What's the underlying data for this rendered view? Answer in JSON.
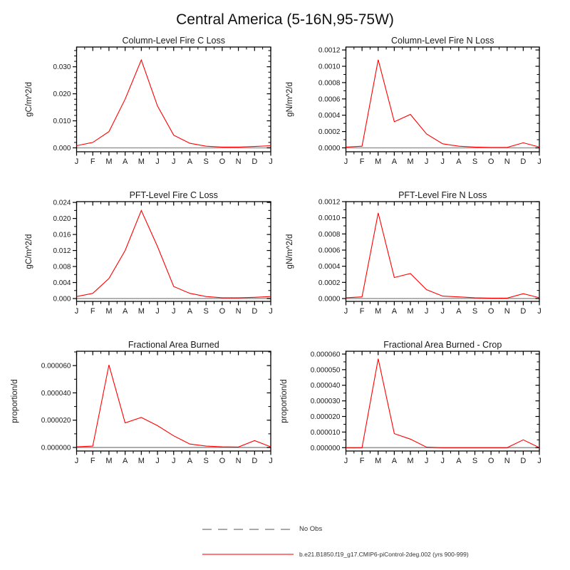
{
  "title": "Central America (5-16N,95-75W)",
  "colors": {
    "series_line": "#ff0000",
    "legend_series_line": "#ff7a7a",
    "no_obs_line": "#a9a9a9",
    "zero_line": "#999999",
    "frame": "#000000"
  },
  "legend": {
    "no_obs_label": "No Obs",
    "series_label": "b.e21.B1850.f19_g17.CMIP6-piControl-2deg.002 (yrs 900-999)"
  },
  "categories": [
    "J",
    "F",
    "M",
    "A",
    "M",
    "J",
    "J",
    "A",
    "S",
    "O",
    "N",
    "D",
    "J"
  ],
  "chart_data": [
    {
      "type": "line",
      "title": "Column-Level Fire C Loss",
      "ylabel": "gC/m^2/d",
      "series_name": "b.e21.B1850.f19_g17.CMIP6-piControl-2deg.002 (yrs 900-999)",
      "values": [
        0.0008,
        0.002,
        0.006,
        0.018,
        0.0325,
        0.0155,
        0.0047,
        0.0017,
        0.0006,
        0.0003,
        0.0003,
        0.0005,
        0.0008
      ],
      "yticks": [
        0.0,
        0.01,
        0.02,
        0.03
      ],
      "ytick_labels": [
        "0.000",
        "0.010",
        "0.020",
        "0.030"
      ],
      "minor_step": 0.002,
      "ylim": [
        -0.00145,
        0.0373
      ],
      "grid": false,
      "line_color": "#ff0000"
    },
    {
      "type": "line",
      "title": "Column-Level Fire N Loss",
      "ylabel": "gN/m^2/d",
      "series_name": "b.e21.B1850.f19_g17.CMIP6-piControl-2deg.002 (yrs 900-999)",
      "values": [
        1e-05,
        2e-05,
        0.00108,
        0.00032,
        0.00041,
        0.00017,
        5e-05,
        2e-05,
        1e-05,
        5e-06,
        5e-06,
        6.2e-05,
        1e-05
      ],
      "yticks": [
        0.0,
        0.0002,
        0.0004,
        0.0006,
        0.0008,
        0.001,
        0.0012
      ],
      "ytick_labels": [
        "0.0000",
        "0.0002",
        "0.0004",
        "0.0006",
        "0.0008",
        "0.0010",
        "0.0012"
      ],
      "minor_step": 0.0001,
      "ylim": [
        -4.8e-05,
        0.001236
      ],
      "grid": false,
      "line_color": "#ff0000"
    },
    {
      "type": "line",
      "title": "PFT-Level Fire C Loss",
      "ylabel": "gC/m^2/d",
      "series_name": "b.e21.B1850.f19_g17.CMIP6-piControl-2deg.002 (yrs 900-999)",
      "values": [
        0.0005,
        0.0013,
        0.005,
        0.012,
        0.022,
        0.013,
        0.003,
        0.0013,
        0.0005,
        0.0002,
        0.0002,
        0.0003,
        0.0005
      ],
      "yticks": [
        0.0,
        0.004,
        0.008,
        0.012,
        0.016,
        0.02,
        0.024
      ],
      "ytick_labels": [
        "0.000",
        "0.004",
        "0.008",
        "0.012",
        "0.016",
        "0.020",
        "0.024"
      ],
      "minor_step": 0.002,
      "ylim": [
        -0.00071,
        0.0242
      ],
      "grid": false,
      "line_color": "#ff0000"
    },
    {
      "type": "line",
      "title": "PFT-Level Fire N Loss",
      "ylabel": "gN/m^2/d",
      "series_name": "b.e21.B1850.f19_g17.CMIP6-piControl-2deg.002 (yrs 900-999)",
      "values": [
        1e-05,
        2e-05,
        0.00106,
        0.00026,
        0.00031,
        0.00011,
        3e-05,
        2e-05,
        1e-05,
        5e-06,
        5e-06,
        6e-05,
        1e-05
      ],
      "yticks": [
        0.0,
        0.0002,
        0.0004,
        0.0006,
        0.0008,
        0.001,
        0.0012
      ],
      "ytick_labels": [
        "0.0000",
        "0.0002",
        "0.0004",
        "0.0006",
        "0.0008",
        "0.0010",
        "0.0012"
      ],
      "minor_step": 0.0001,
      "ylim": [
        -3.53e-05,
        0.0012
      ],
      "grid": false,
      "line_color": "#ff0000"
    },
    {
      "type": "line",
      "title": "Fractional Area Burned",
      "ylabel": "proportion/d",
      "series_name": "b.e21.B1850.f19_g17.CMIP6-piControl-2deg.002 (yrs 900-999)",
      "values": [
        5e-07,
        1e-06,
        6.05e-05,
        1.8e-05,
        2.2e-05,
        1.6e-05,
        8.5e-06,
        2.5e-06,
        1e-06,
        5e-07,
        3e-07,
        5e-06,
        5e-07
      ],
      "yticks": [
        0.0,
        2e-05,
        4e-05,
        6e-05
      ],
      "ytick_labels": [
        "0.000000",
        "0.000020",
        "0.000040",
        "0.000060"
      ],
      "minor_step": 1e-05,
      "ylim": [
        -2.6e-06,
        7.05e-05
      ],
      "grid": false,
      "line_color": "#ff0000"
    },
    {
      "type": "line",
      "title": "Fractional Area Burned - Crop",
      "ylabel": "proportion/d",
      "series_name": "b.e21.B1850.f19_g17.CMIP6-piControl-2deg.002 (yrs 900-999)",
      "values": [
        0.0,
        0.0,
        5.7e-05,
        9e-06,
        5.5e-06,
        3e-07,
        0.0,
        0.0,
        0.0,
        0.0,
        0.0,
        5e-06,
        0.0
      ],
      "yticks": [
        0.0,
        1e-05,
        2e-05,
        3e-05,
        4e-05,
        5e-05,
        6e-05
      ],
      "ytick_labels": [
        "0.000000",
        "0.000010",
        "0.000020",
        "0.000030",
        "0.000040",
        "0.000050",
        "0.000060"
      ],
      "minor_step": 5e-06,
      "ylim": [
        -2.15e-06,
        6.18e-05
      ],
      "grid": false,
      "line_color": "#ff0000"
    }
  ]
}
